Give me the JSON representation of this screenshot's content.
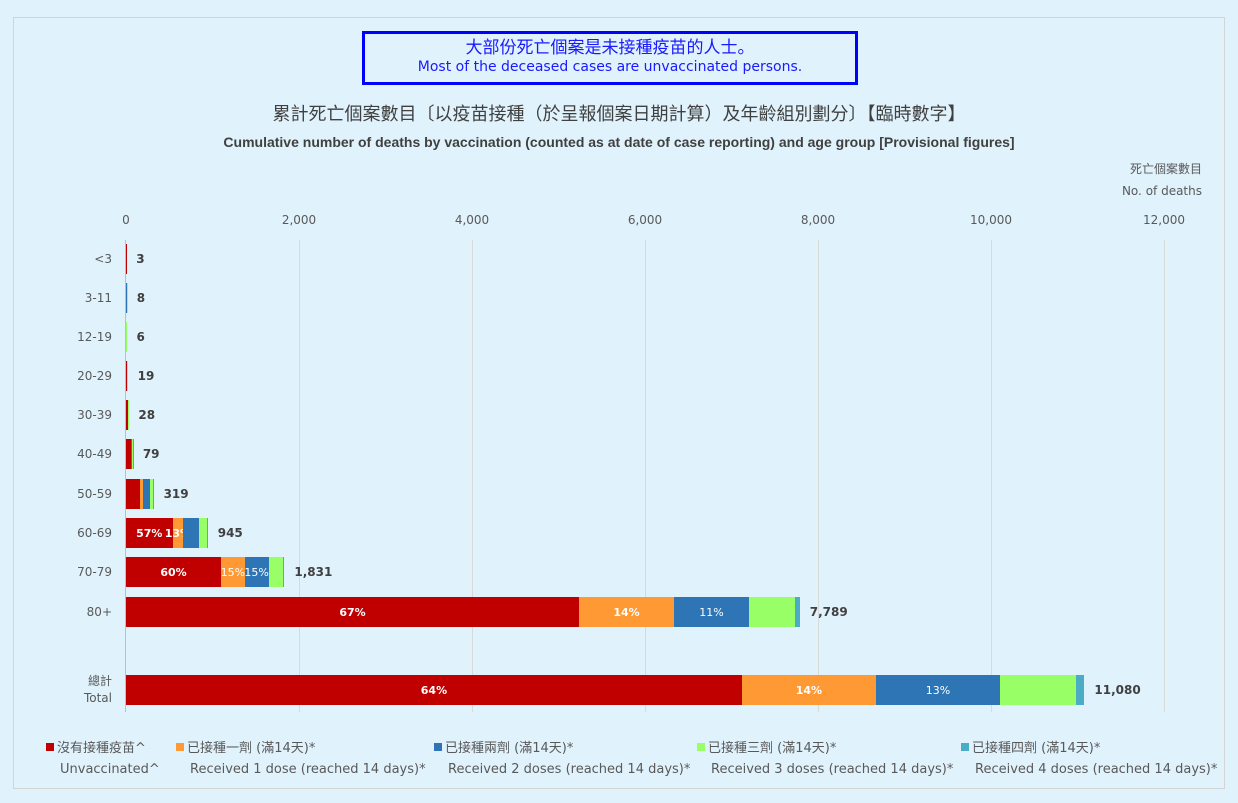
{
  "callout": {
    "zh": "大部份死亡個案是未接種疫苗的人士。",
    "en": "Most of the deceased cases are unvaccinated persons."
  },
  "chart_data": {
    "type": "bar",
    "orientation": "horizontal",
    "stacked": true,
    "title": "累計死亡個案數目〔以疫苗接種（於呈報個案日期計算）及年齡組別劃分〕【臨時數字】",
    "subtitle": "Cumulative number of deaths by vaccination (counted as at date of case reporting) and age group [Provisional figures]",
    "xlabel": "死亡個案數目 No. of deaths",
    "xlabel_zh": "死亡個案數目",
    "xlabel_en": "No. of deaths",
    "ylabel": "",
    "xlim": [
      0,
      12000
    ],
    "x_ticks": [
      "0",
      "2,000",
      "4,000",
      "6,000",
      "8,000",
      "10,000",
      "12,000"
    ],
    "grid": true,
    "legend_position": "bottom",
    "categories": [
      "<3",
      "3-11",
      "12-19",
      "20-29",
      "30-39",
      "40-49",
      "50-59",
      "60-69",
      "70-79",
      "80+",
      "總計 Total"
    ],
    "category_labels": [
      {
        "label": "<3"
      },
      {
        "label": "3-11"
      },
      {
        "label": "12-19"
      },
      {
        "label": "20-29"
      },
      {
        "label": "30-39"
      },
      {
        "label": "40-49"
      },
      {
        "label": "50-59"
      },
      {
        "label": "60-69"
      },
      {
        "label": "70-79"
      },
      {
        "label": "80+"
      },
      {
        "label_zh": "總計",
        "label_en": "Total"
      }
    ],
    "totals": [
      3,
      8,
      6,
      19,
      28,
      79,
      319,
      945,
      1831,
      7789,
      11080
    ],
    "total_labels": [
      "3",
      "8",
      "6",
      "19",
      "28",
      "79",
      "319",
      "945",
      "1,831",
      "7,789",
      "11,080"
    ],
    "series": [
      {
        "name": "沒有接種疫苗^ Unvaccinated^",
        "name_zh": "沒有接種疫苗^",
        "name_en": "Unvaccinated^",
        "color": "#c00000",
        "values": [
          3,
          4,
          3,
          9,
          20,
          55,
          165,
          539,
          1098,
          5237,
          7120
        ],
        "pct_labels": [
          "",
          "",
          "",
          "",
          "",
          "",
          "",
          "57%",
          "60%",
          "67%",
          "64%"
        ]
      },
      {
        "name": "已接種一劑 (滿14天)* Received 1 dose (reached 14 days)*",
        "name_zh": "已接種一劑 (滿14天)*",
        "name_en": "Received 1 dose (reached 14 days)*",
        "color": "#ff9933",
        "values": [
          0,
          1,
          1,
          3,
          3,
          8,
          30,
          123,
          275,
          1098,
          1550
        ],
        "pct_labels": [
          "",
          "",
          "",
          "",
          "",
          "",
          "",
          "13%",
          "15%",
          "14%",
          "14%"
        ]
      },
      {
        "name": "已接種兩劑 (滿14天)* Received 2 doses (reached 14 days)*",
        "name_zh": "已接種兩劑 (滿14天)*",
        "name_en": "Received 2 doses (reached 14 days)*",
        "color": "#2e75b6",
        "values": [
          0,
          2,
          1,
          5,
          3,
          8,
          80,
          180,
          275,
          867,
          1435
        ],
        "pct_labels": [
          "",
          "",
          "",
          "",
          "",
          "",
          "",
          "",
          "15%",
          "11%",
          "13%"
        ]
      },
      {
        "name": "已接種三劑 (滿14天)* Received 3 doses (reached 14 days)*",
        "name_zh": "已接種三劑 (滿14天)*",
        "name_en": "Received 3 doses (reached 14 days)*",
        "color": "#99ff66",
        "values": [
          0,
          1,
          1,
          2,
          2,
          6,
          40,
          100,
          170,
          532,
          875
        ],
        "pct_labels": [
          "",
          "",
          "",
          "",
          "",
          "",
          "",
          "",
          "",
          "",
          ""
        ]
      },
      {
        "name": "已接種四劑 (滿14天)* Received 4 doses (reached 14 days)*",
        "name_zh": "已接種四劑 (滿14天)*",
        "name_en": "Received 4 doses (reached 14 days)*",
        "color": "#4bacc6",
        "values": [
          0,
          0,
          0,
          0,
          0,
          2,
          4,
          3,
          13,
          55,
          100
        ],
        "pct_labels": [
          "",
          "",
          "",
          "",
          "",
          "",
          "",
          "",
          "",
          "",
          ""
        ]
      }
    ]
  }
}
